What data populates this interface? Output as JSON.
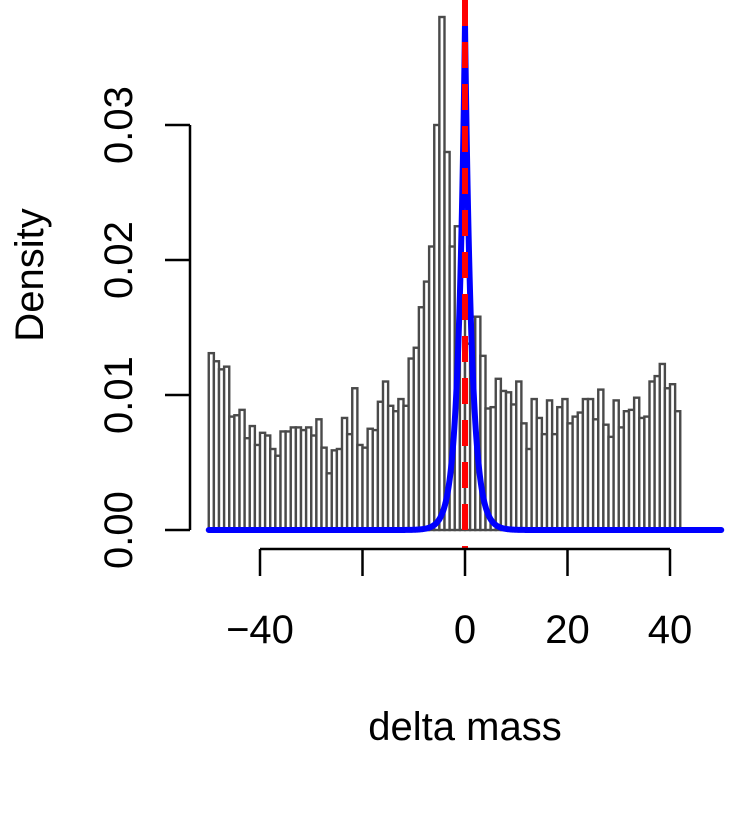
{
  "chart_data": {
    "type": "bar",
    "title": "",
    "xlabel": "delta mass",
    "ylabel": "Density",
    "xlim": [
      -50,
      50
    ],
    "ylim": [
      0,
      0.038
    ],
    "x_ticks": [
      -40,
      -20,
      0,
      20,
      40
    ],
    "x_tick_labels": [
      "−40",
      "",
      "0",
      "20",
      "40"
    ],
    "y_ticks": [
      0,
      0.01,
      0.02,
      0.03
    ],
    "y_tick_labels": [
      "0.00",
      "0.01",
      "0.02",
      "0.03"
    ],
    "grid": false,
    "histogram": {
      "bin_start": -50,
      "bin_width": 1,
      "densities": [
        0.0131,
        0.0125,
        0.0119,
        0.0121,
        0.0084,
        0.0085,
        0.0089,
        0.0068,
        0.0077,
        0.0063,
        0.0072,
        0.007,
        0.006,
        0.0055,
        0.0073,
        0.0073,
        0.0076,
        0.0076,
        0.0074,
        0.0076,
        0.007,
        0.0082,
        0.0061,
        0.0042,
        0.0059,
        0.006,
        0.0083,
        0.0071,
        0.0105,
        0.0063,
        0.0061,
        0.0075,
        0.0074,
        0.0095,
        0.011,
        0.0092,
        0.0088,
        0.0097,
        0.0092,
        0.0127,
        0.0135,
        0.0165,
        0.0184,
        0.021,
        0.03,
        0.038,
        0.028,
        0.021,
        0.0225,
        0.016,
        0.0138,
        0.0158,
        0.0158,
        0.0129,
        0.009,
        0.0091,
        0.0112,
        0.0103,
        0.0102,
        0.0093,
        0.011,
        0.0079,
        0.006,
        0.0097,
        0.0083,
        0.0071,
        0.0096,
        0.0071,
        0.0091,
        0.0097,
        0.0079,
        0.0084,
        0.0087,
        0.0097,
        0.0097,
        0.0082,
        0.0104,
        0.0078,
        0.0069,
        0.0096,
        0.0076,
        0.0088,
        0.0089,
        0.0098,
        0.0083,
        0.0084,
        0.011,
        0.0114,
        0.0123,
        0.0105,
        0.0108,
        0.0088
      ]
    },
    "density_curve": {
      "distribution": "Laplace",
      "location": 0,
      "scale": 1.3,
      "peak_density": 0.0375,
      "color": "#0000ff"
    },
    "reference_line": {
      "x": 0,
      "color": "#ff0000",
      "style": "dashed"
    },
    "bar_edge_color": "#4a4a4a",
    "bar_fill_color": "#ffffff"
  }
}
